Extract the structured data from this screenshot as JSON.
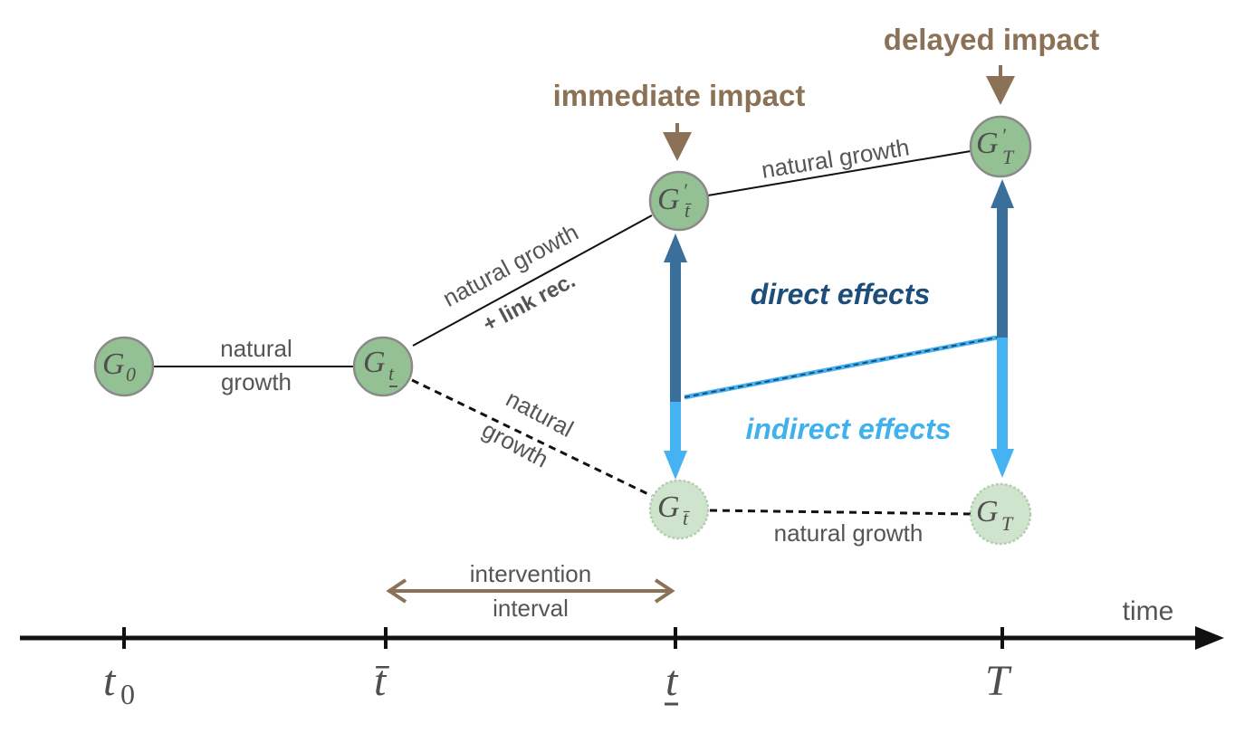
{
  "headings": {
    "immediate_impact": "immediate impact",
    "delayed_impact": "delayed impact"
  },
  "effects": {
    "direct": "direct effects",
    "indirect": "indirect effects"
  },
  "edges": {
    "g0_to_gt_line1": "natural",
    "g0_to_gt_line2": "growth",
    "upper_branch_line1": "natural growth",
    "upper_branch_line2": "+ link rec.",
    "lower_branch_line1": "natural",
    "lower_branch_line2": "growth",
    "top_right": "natural growth",
    "bottom_right": "natural growth"
  },
  "nodes": {
    "g0": {
      "main": "G",
      "sub": "0"
    },
    "gt_under": {
      "main": "G",
      "sub": "t"
    },
    "gprime_tbar": {
      "main": "G",
      "prime": "′",
      "sub": "t̄"
    },
    "gprime_T": {
      "main": "G",
      "prime": "′",
      "sub": "T"
    },
    "g_tbar": {
      "main": "G",
      "sub": "t̄"
    },
    "g_T": {
      "main": "G",
      "sub": "T"
    }
  },
  "interval": {
    "line1": "intervention",
    "line2": "interval"
  },
  "timeline": {
    "axis_label": "time",
    "ticks": [
      {
        "main": "t",
        "sub": "0"
      },
      {
        "main": "t̄",
        "sub": ""
      },
      {
        "main": "t",
        "sub": ""
      },
      {
        "main": "T",
        "sub": ""
      }
    ]
  },
  "colors": {
    "node_fill": "#94c193",
    "node_fill_faded": "#cfe4cc",
    "node_stroke": "#8a8a8a",
    "brown": "#8b7257",
    "dark_blue": "#3a6f9b",
    "light_blue": "#45b2f2",
    "text_gray": "#555555"
  }
}
